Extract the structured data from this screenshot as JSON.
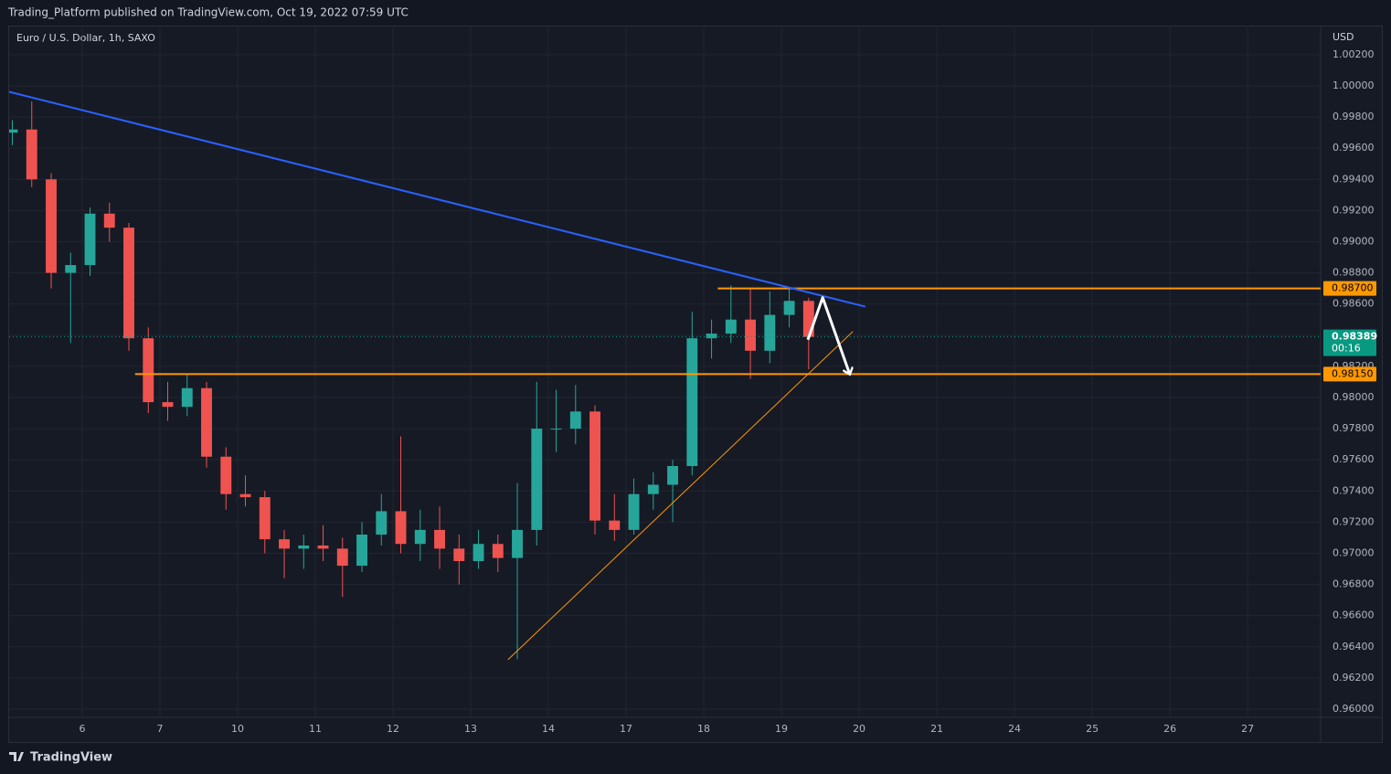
{
  "header": {
    "title": "Trading_Platform published on TradingView.com, Oct 19, 2022 07:59 UTC"
  },
  "footer": {
    "brand": "TradingView"
  },
  "chart_data": {
    "type": "candlestick",
    "title": "Euro / U.S. Dollar, 1h, SAXO",
    "y_axis_label": "USD",
    "up_color": "#26a69a",
    "down_color": "#ef5350",
    "grid": true,
    "xlim": [
      0.0588,
      16.94
    ],
    "ylim": [
      0.95947,
      1.00387
    ],
    "xticks": [
      {
        "value": 1,
        "label": "6"
      },
      {
        "value": 2,
        "label": "7"
      },
      {
        "value": 3,
        "label": "10"
      },
      {
        "value": 4,
        "label": "11"
      },
      {
        "value": 5,
        "label": "12"
      },
      {
        "value": 6,
        "label": "13"
      },
      {
        "value": 7,
        "label": "14"
      },
      {
        "value": 8,
        "label": "17"
      },
      {
        "value": 9,
        "label": "18"
      },
      {
        "value": 10,
        "label": "19"
      },
      {
        "value": 11,
        "label": "20"
      },
      {
        "value": 12,
        "label": "21"
      },
      {
        "value": 13,
        "label": "24"
      },
      {
        "value": 14,
        "label": "25"
      },
      {
        "value": 15,
        "label": "26"
      },
      {
        "value": 16,
        "label": "27"
      }
    ],
    "yticks": [
      {
        "value": 0.96,
        "label": "0.96000"
      },
      {
        "value": 0.962,
        "label": "0.96200"
      },
      {
        "value": 0.964,
        "label": "0.96400"
      },
      {
        "value": 0.966,
        "label": "0.96600"
      },
      {
        "value": 0.968,
        "label": "0.96800"
      },
      {
        "value": 0.97,
        "label": "0.97000"
      },
      {
        "value": 0.972,
        "label": "0.97200"
      },
      {
        "value": 0.974,
        "label": "0.97400"
      },
      {
        "value": 0.976,
        "label": "0.97600"
      },
      {
        "value": 0.978,
        "label": "0.97800"
      },
      {
        "value": 0.98,
        "label": "0.98000"
      },
      {
        "value": 0.982,
        "label": "0.98200"
      },
      {
        "value": 0.984,
        "label": "0.98400"
      },
      {
        "value": 0.986,
        "label": "0.98600"
      },
      {
        "value": 0.988,
        "label": "0.98800"
      },
      {
        "value": 0.99,
        "label": "0.99000"
      },
      {
        "value": 0.992,
        "label": "0.99200"
      },
      {
        "value": 0.994,
        "label": "0.99400"
      },
      {
        "value": 0.996,
        "label": "0.99600"
      },
      {
        "value": 0.998,
        "label": "0.99800"
      },
      {
        "value": 1.0,
        "label": "1.00000"
      },
      {
        "value": 1.002,
        "label": "1.00200"
      }
    ],
    "x": [
      0.1,
      0.35,
      0.6,
      0.85,
      1.1,
      1.35,
      1.6,
      1.85,
      2.1,
      2.35,
      2.6,
      2.85,
      3.1,
      3.35,
      3.6,
      3.85,
      4.1,
      4.35,
      4.6,
      4.85,
      5.1,
      5.35,
      5.6,
      5.85,
      6.1,
      6.35,
      6.6,
      6.85,
      7.1,
      7.35,
      7.6,
      7.85,
      8.1,
      8.35,
      8.6,
      8.85,
      9.1,
      9.35,
      9.6,
      9.85,
      10.1,
      10.35
    ],
    "open": [
      0.997,
      0.9972,
      0.994,
      0.988,
      0.9885,
      0.9918,
      0.9909,
      0.9838,
      0.9797,
      0.9794,
      0.9806,
      0.9762,
      0.9738,
      0.9736,
      0.9709,
      0.9703,
      0.9705,
      0.9703,
      0.9692,
      0.9712,
      0.9727,
      0.9706,
      0.9715,
      0.9703,
      0.9695,
      0.9706,
      0.9697,
      0.9715,
      0.978,
      0.978,
      0.9791,
      0.9721,
      0.9715,
      0.9738,
      0.9744,
      0.9756,
      0.9838,
      0.9841,
      0.985,
      0.983,
      0.9853,
      0.9862
    ],
    "high": [
      0.9978,
      0.999,
      0.9944,
      0.9893,
      0.9922,
      0.9925,
      0.9912,
      0.9845,
      0.981,
      0.9815,
      0.981,
      0.9768,
      0.975,
      0.974,
      0.9715,
      0.9712,
      0.9718,
      0.971,
      0.972,
      0.9738,
      0.9775,
      0.9728,
      0.973,
      0.9712,
      0.9715,
      0.9712,
      0.9745,
      0.981,
      0.9805,
      0.9808,
      0.9795,
      0.9738,
      0.9748,
      0.9752,
      0.976,
      0.9855,
      0.985,
      0.9872,
      0.987,
      0.9868,
      0.987,
      0.9864
    ],
    "low": [
      0.9962,
      0.9935,
      0.987,
      0.9835,
      0.9878,
      0.99,
      0.983,
      0.979,
      0.9785,
      0.9788,
      0.9755,
      0.9728,
      0.973,
      0.97,
      0.9684,
      0.969,
      0.9695,
      0.9672,
      0.9688,
      0.9705,
      0.97,
      0.9695,
      0.969,
      0.968,
      0.969,
      0.9688,
      0.9632,
      0.9705,
      0.9765,
      0.977,
      0.9712,
      0.9708,
      0.9712,
      0.9728,
      0.972,
      0.975,
      0.9825,
      0.9835,
      0.9812,
      0.9822,
      0.9845,
      0.9818
    ],
    "close": [
      0.9972,
      0.994,
      0.988,
      0.9885,
      0.9918,
      0.9909,
      0.9838,
      0.9797,
      0.9794,
      0.9806,
      0.9762,
      0.9738,
      0.9736,
      0.9709,
      0.9703,
      0.9705,
      0.9703,
      0.9692,
      0.9712,
      0.9727,
      0.9706,
      0.9715,
      0.9703,
      0.9695,
      0.9706,
      0.9697,
      0.9715,
      0.978,
      0.978,
      0.9791,
      0.9721,
      0.9715,
      0.9738,
      0.9744,
      0.9756,
      0.9838,
      0.9841,
      0.985,
      0.983,
      0.9853,
      0.9862,
      0.98389
    ],
    "last_price": 0.98389,
    "last_price_color": "#089981",
    "countdown": "00:16",
    "levels": [
      {
        "value": 0.987,
        "label": "0.98700",
        "x_start": 9.18,
        "color": "#ff9800"
      },
      {
        "value": 0.9815,
        "label": "0.98150",
        "x_start": 1.68,
        "color": "#ff9800"
      }
    ],
    "drawings": [
      {
        "color": "#2962ff",
        "width": 2,
        "x": [
          0.0588,
          11.08
        ],
        "y": [
          0.99962,
          0.98583
        ]
      },
      {
        "color": "#ff9800",
        "width": 1,
        "x": [
          6.48,
          10.92
        ],
        "y": [
          0.96317,
          0.98424
        ]
      },
      {
        "color": "#ffffff",
        "width": 3,
        "arrow": true,
        "x": [
          10.34,
          10.53,
          10.88
        ],
        "y": [
          0.98371,
          0.98641,
          0.98148
        ]
      }
    ]
  }
}
